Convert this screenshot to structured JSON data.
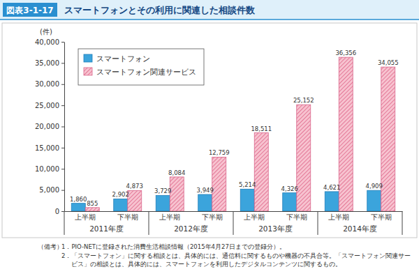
{
  "chart_data": {
    "type": "bar",
    "figure_label": "図表3-1-17",
    "title": "スマートフォンとその利用に関連した相談件数",
    "y_label": "(件)",
    "categories": [
      "上半期",
      "下半期",
      "上半期",
      "下半期",
      "上半期",
      "下半期",
      "上半期",
      "下半期"
    ],
    "category_groups": [
      "2011年度",
      "2012年度",
      "2013年度",
      "2014年度"
    ],
    "series": [
      {
        "name": "スマートフォン",
        "color": "#3ba4dc",
        "values": [
          1860,
          2902,
          3729,
          3949,
          5214,
          4326,
          4621,
          4909
        ],
        "value_labels": [
          "1,860",
          "2,902",
          "3,729",
          "3,949",
          "5,214",
          "4,326",
          "4,621",
          "4,909"
        ]
      },
      {
        "name": "スマートフォン関連サービス",
        "color": "#f7c3d0",
        "values": [
          855,
          4873,
          8084,
          12759,
          18511,
          25152,
          36356,
          34055
        ],
        "value_labels": [
          "855",
          "4,873",
          "8,084",
          "12,759",
          "18,511",
          "25,152",
          "36,356",
          "34,055"
        ]
      }
    ],
    "ylim": [
      0,
      40000
    ],
    "yticks": [
      0,
      {
        "value": 5000,
        "label": "5,000"
      },
      {
        "value": 10000,
        "label": "10,000"
      },
      {
        "value": 15000,
        "label": "15,000"
      },
      {
        "value": 20000,
        "label": "20,000"
      },
      {
        "value": 25000,
        "label": "25,000"
      },
      {
        "value": 30000,
        "label": "30,000"
      },
      {
        "value": 35000,
        "label": "35,000"
      },
      {
        "value": 40000,
        "label": "40,000"
      }
    ],
    "legend": "top-left",
    "data_labels": true,
    "notes_label": "（備考）",
    "notes": [
      "1．PIO-NETに登録された消費生活相談情報（2015年4月27日までの登録分）。",
      "2．「スマートフォン」に関する相談とは、具体的には、通信料に関するものや機器の不具合等。「スマートフォン関連サービス」の相談とは、具体的には、スマートフォンを利用したデジタルコンテンツに関するもの。"
    ]
  }
}
